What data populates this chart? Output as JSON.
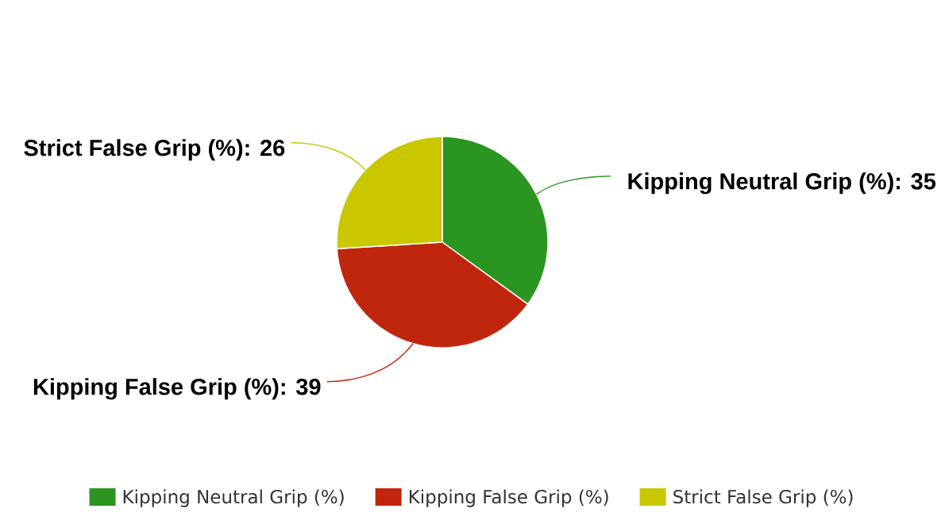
{
  "chart_data": {
    "type": "pie",
    "categories": [
      "Kipping Neutral Grip (%)",
      "Kipping False Grip (%)",
      "Strict False Grip (%)"
    ],
    "values": [
      35,
      39,
      26
    ],
    "value_labels": [
      "Kipping Neutral Grip (%): 35",
      "Kipping False Grip (%): 39",
      "Strict False Grip (%): 26"
    ],
    "colors": [
      "#2a9520",
      "#c0260e",
      "#c9c700"
    ],
    "legend": "bottom"
  }
}
